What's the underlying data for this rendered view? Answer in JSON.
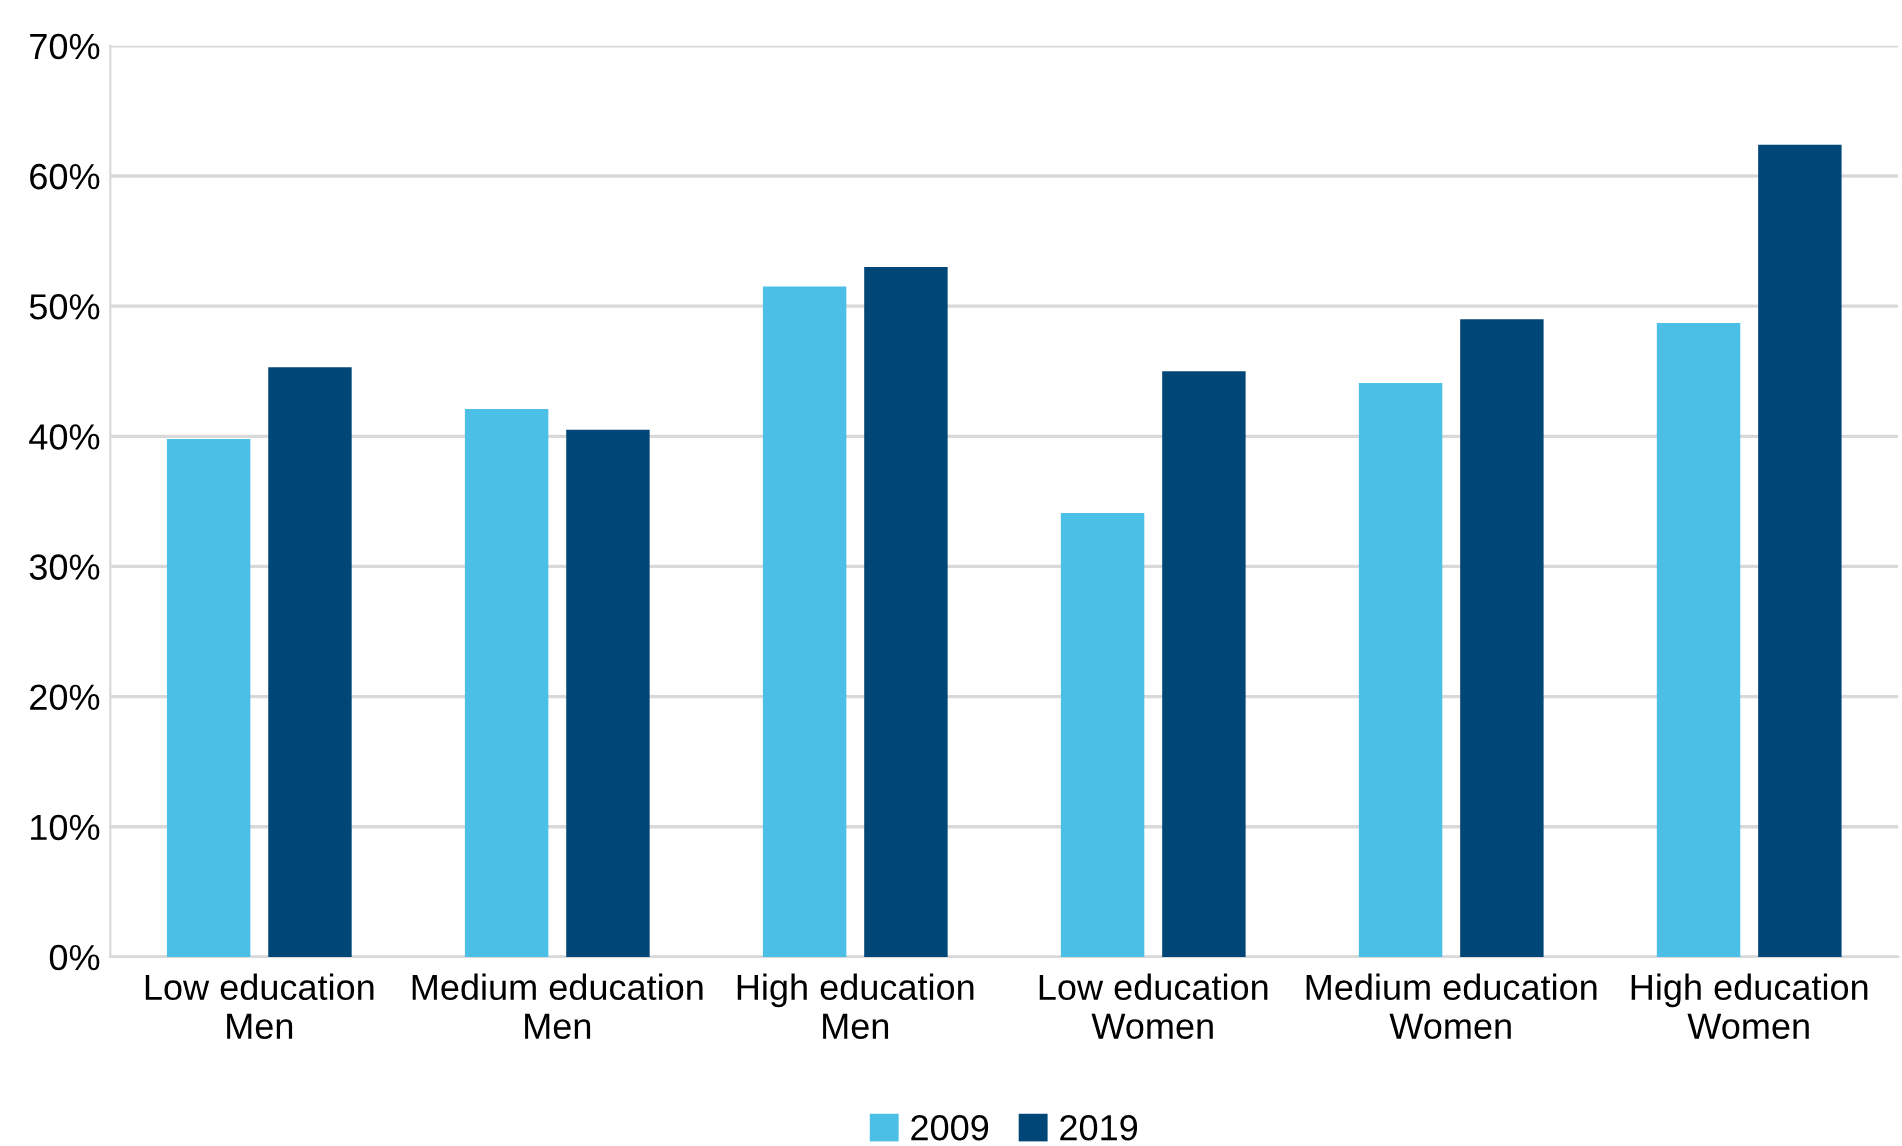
{
  "chart_data": {
    "type": "bar",
    "categories": [
      "Low education\nMen",
      "Medium education\nMen",
      "High education\nMen",
      "Low education\nWomen",
      "Medium education\nWomen",
      "High education\nWomen"
    ],
    "series": [
      {
        "name": "2009",
        "color": "#4cbfe6",
        "values": [
          39.8,
          42.1,
          51.5,
          34.1,
          44.1,
          48.7
        ]
      },
      {
        "name": "2019",
        "color": "#004677",
        "values": [
          45.3,
          40.5,
          53.0,
          45.0,
          49.0,
          62.4
        ]
      }
    ],
    "ylim": [
      0,
      70
    ],
    "yticks": [
      {
        "value": 0,
        "label": "0%"
      },
      {
        "value": 10,
        "label": "10%"
      },
      {
        "value": 20,
        "label": "20%"
      },
      {
        "value": 30,
        "label": "30%"
      },
      {
        "value": 40,
        "label": "40%"
      },
      {
        "value": 50,
        "label": "50%"
      },
      {
        "value": 60,
        "label": "60%"
      },
      {
        "value": 70,
        "label": "70%"
      }
    ],
    "grid": "y",
    "legend": "bottom"
  }
}
